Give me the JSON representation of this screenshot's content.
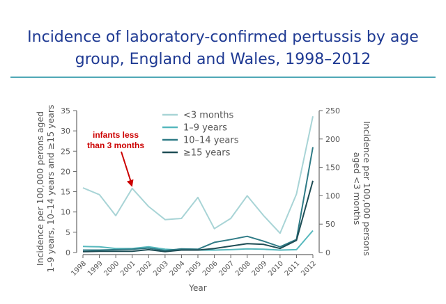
{
  "page": {
    "title_line1": "Incidence of laboratory-confirmed pertussis by age",
    "title_line2": "group, England and Wales, 1998–2012"
  },
  "chart_data": {
    "type": "line",
    "title": "Incidence of laboratory-confirmed pertussis by age group, England and Wales, 1998–2012",
    "xlabel": "Year",
    "ylabel_left_line1": "Incidence per 100,000 perons aged",
    "ylabel_left_line2": "1–9 years, 10–14 years and ≥15 years",
    "ylabel_right_line1": "Incidence per 100,000 persons",
    "ylabel_right_line2": "aged <3 months",
    "ylim_left": [
      0,
      35
    ],
    "ylim_right": [
      0,
      250
    ],
    "yticks_left": [
      0,
      5,
      10,
      15,
      20,
      25,
      30,
      35
    ],
    "yticks_right": [
      0,
      50,
      100,
      150,
      200,
      250
    ],
    "grid": false,
    "legend_position": "top-center",
    "x": [
      "1998",
      "1999",
      "2000",
      "2001",
      "2002",
      "2003",
      "2004",
      "2005",
      "2006",
      "2007",
      "2008",
      "2009",
      "2010",
      "2011",
      "2012"
    ],
    "series": [
      {
        "name": "<3 months",
        "axis": "right",
        "color": "#a8d4d6",
        "values": [
          114,
          102,
          65,
          113,
          81,
          58,
          60,
          97,
          42,
          60,
          100,
          65,
          34,
          103,
          240
        ]
      },
      {
        "name": "1–9 years",
        "axis": "left",
        "color": "#56b8bd",
        "values": [
          1.5,
          1.4,
          1.0,
          1.0,
          1.4,
          0.8,
          0.6,
          0.6,
          0.6,
          0.7,
          0.9,
          0.8,
          0.6,
          0.7,
          5.4
        ]
      },
      {
        "name": "10–14 years",
        "axis": "left",
        "color": "#2f7b86",
        "values": [
          0.6,
          0.6,
          0.7,
          0.8,
          1.1,
          0.5,
          0.9,
          0.8,
          2.5,
          3.2,
          4.0,
          2.8,
          1.4,
          3.2,
          26.0
        ]
      },
      {
        "name": "≥15 years",
        "axis": "left",
        "color": "#1e4d55",
        "values": [
          0.2,
          0.3,
          0.3,
          0.3,
          0.7,
          0.2,
          0.6,
          0.6,
          1.0,
          1.6,
          2.2,
          2.0,
          1.0,
          3.0,
          17.7
        ]
      }
    ],
    "annotation": {
      "line1": "infants less",
      "line2": "than 3 months",
      "color": "#cc0000",
      "target_series": "<3 months",
      "target_x": "2001"
    }
  }
}
